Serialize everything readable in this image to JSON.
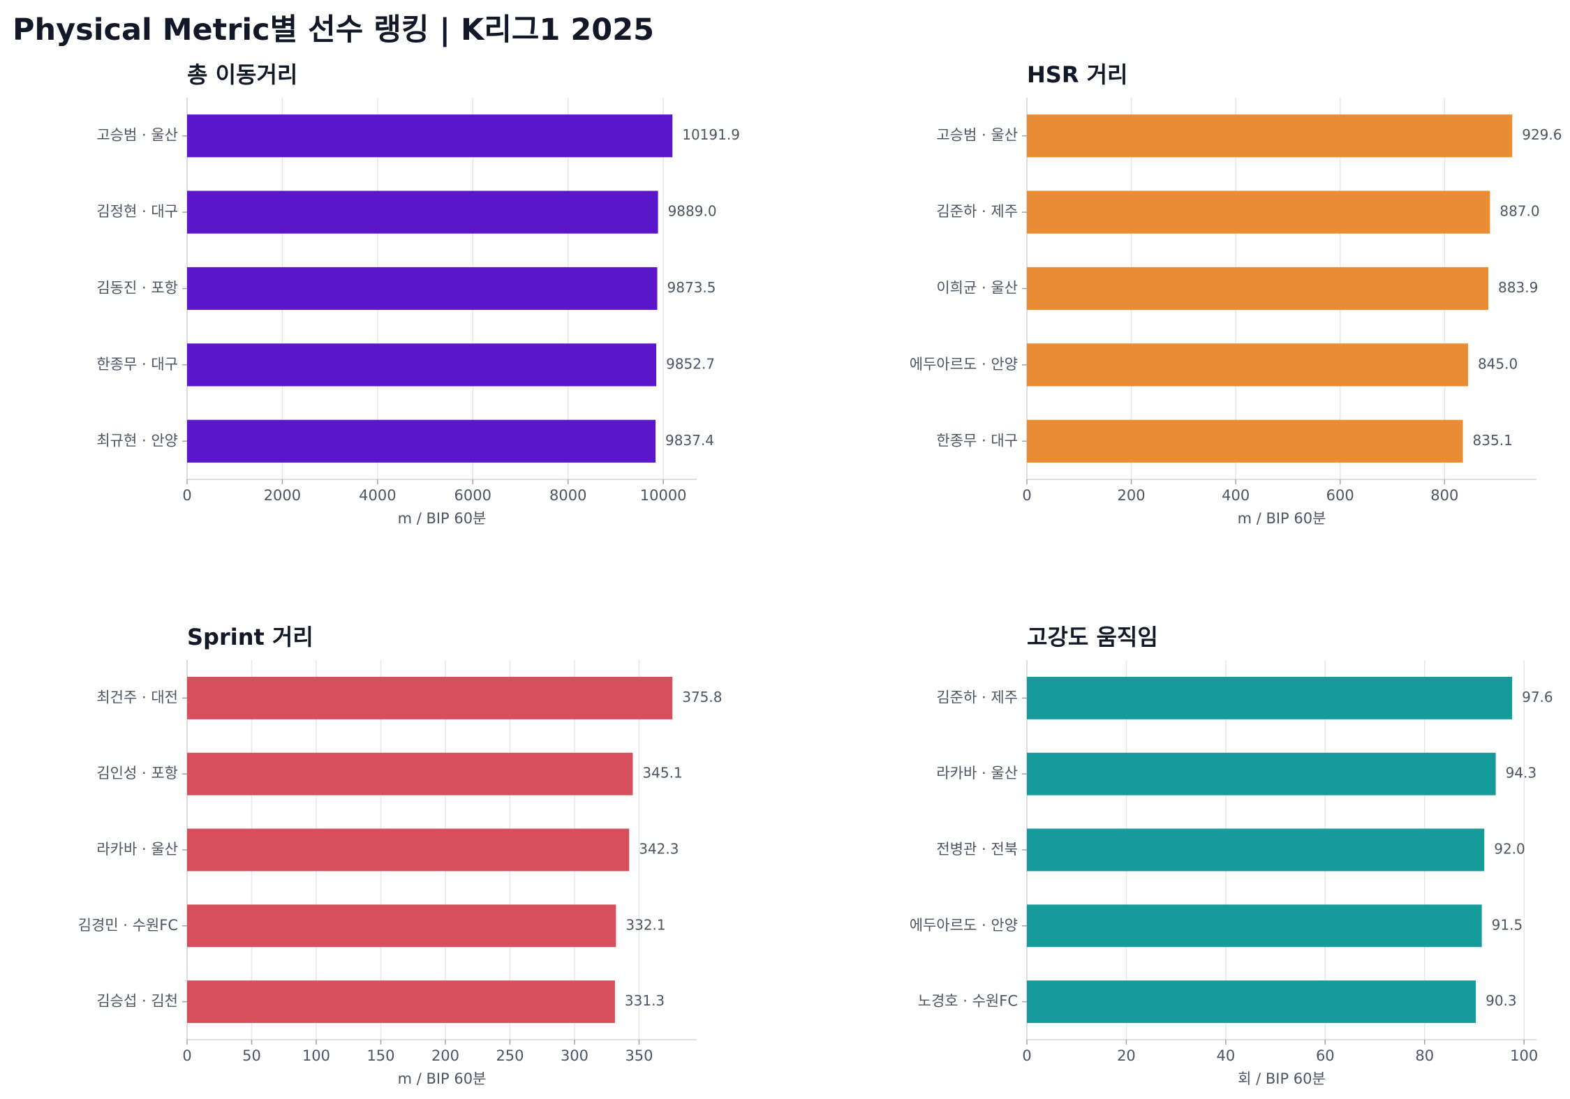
{
  "title": "Physical Metric별 선수 랭킹 | K리그1 2025",
  "chart_data": [
    {
      "type": "bar",
      "orientation": "horizontal",
      "title": "총 이동거리",
      "xlabel": "m / BIP 60분",
      "color": "#5b16c9",
      "categories": [
        "고승범 · 울산",
        "김정현 · 대구",
        "김동진 · 포항",
        "한종무 · 대구",
        "최규현 · 안양"
      ],
      "values": [
        10191.9,
        9889.0,
        9873.5,
        9852.7,
        9837.4
      ],
      "value_labels": [
        "10191.9",
        "9889.0",
        "9873.5",
        "9852.7",
        "9837.4"
      ],
      "xlim": [
        0,
        10701.5
      ],
      "xticks": [
        0,
        2000,
        4000,
        6000,
        8000,
        10000
      ],
      "grid": true
    },
    {
      "type": "bar",
      "orientation": "horizontal",
      "title": "HSR 거리",
      "xlabel": "m / BIP 60분",
      "color": "#e98c33",
      "categories": [
        "고승범 · 울산",
        "김준하 · 제주",
        "이희균 · 울산",
        "에두아르도 · 안양",
        "한종무 · 대구"
      ],
      "values": [
        929.6,
        887.0,
        883.9,
        845.0,
        835.1
      ],
      "value_labels": [
        "929.6",
        "887.0",
        "883.9",
        "845.0",
        "835.1"
      ],
      "xlim": [
        0,
        976.1
      ],
      "xticks": [
        0,
        200,
        400,
        600,
        800
      ],
      "grid": true
    },
    {
      "type": "bar",
      "orientation": "horizontal",
      "title": "Sprint 거리",
      "xlabel": "m / BIP 60분",
      "color": "#d64f5c",
      "categories": [
        "최건주 · 대전",
        "김인성 · 포항",
        "라카바 · 울산",
        "김경민 · 수원FC",
        "김승섭 · 김천"
      ],
      "values": [
        375.8,
        345.1,
        342.3,
        332.1,
        331.3
      ],
      "value_labels": [
        "375.8",
        "345.1",
        "342.3",
        "332.1",
        "331.3"
      ],
      "xlim": [
        0,
        394.6
      ],
      "xticks": [
        0,
        50,
        100,
        150,
        200,
        250,
        300,
        350
      ],
      "grid": true
    },
    {
      "type": "bar",
      "orientation": "horizontal",
      "title": "고강도 움직임",
      "xlabel": "회 / BIP 60분",
      "color": "#169b9b",
      "categories": [
        "김준하 · 제주",
        "라카바 · 울산",
        "전병관 · 전북",
        "에두아르도 · 안양",
        "노경호 · 수원FC"
      ],
      "values": [
        97.6,
        94.3,
        92.0,
        91.5,
        90.3
      ],
      "value_labels": [
        "97.6",
        "94.3",
        "92.0",
        "91.5",
        "90.3"
      ],
      "xlim": [
        0,
        102.5
      ],
      "xticks": [
        0,
        20,
        40,
        60,
        80,
        100
      ],
      "grid": true
    }
  ]
}
